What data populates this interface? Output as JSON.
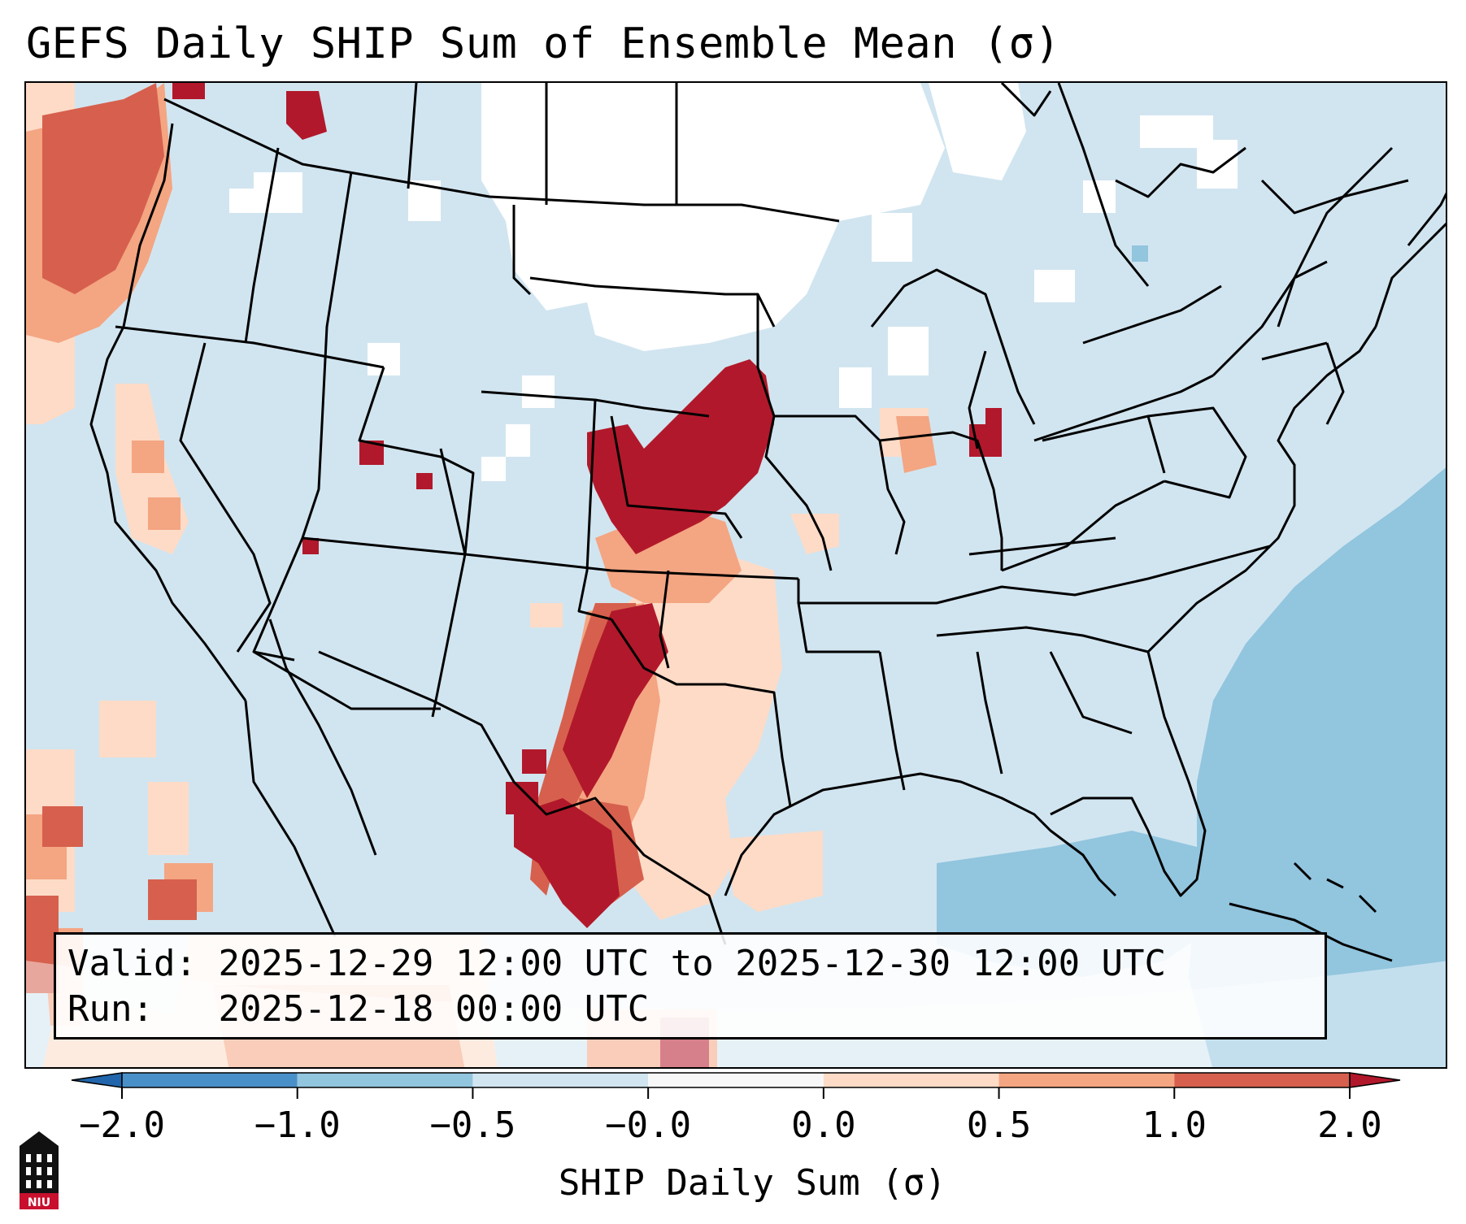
{
  "title": "GEFS Daily SHIP Sum of Ensemble Mean (σ)",
  "info": {
    "valid_label": "Valid:",
    "valid_value": "2025-12-29 12:00 UTC to 2025-12-30 12:00 UTC",
    "run_label": "Run:",
    "run_value": "2025-12-18 00:00 UTC"
  },
  "colorbar": {
    "label": "SHIP Daily Sum (σ)",
    "ticks": [
      "−2.0",
      "−1.0",
      "−0.5",
      "−0.0",
      "0.0",
      "0.5",
      "1.0",
      "2.0"
    ],
    "bin_colors": [
      "#4a90c8",
      "#92c5de",
      "#d1e5f0",
      "#f7f7f7",
      "#fddbc7",
      "#f4a582",
      "#d6604d"
    ],
    "under_color": "#2166ac",
    "over_color": "#b2182b"
  },
  "map": {
    "projection": "Lambert Conformal (CONUS)",
    "background_color": "#d1e5f0",
    "field_colors": {
      "neutral": "#ffffff",
      "light_blue": "#d1e5f0",
      "mid_blue": "#92c5de",
      "light_red": "#fddbc7",
      "salmon": "#f4a582",
      "red": "#d6604d",
      "dark_red": "#b2182b"
    }
  },
  "logo": {
    "text": "NIU",
    "color": "#c8102e"
  }
}
